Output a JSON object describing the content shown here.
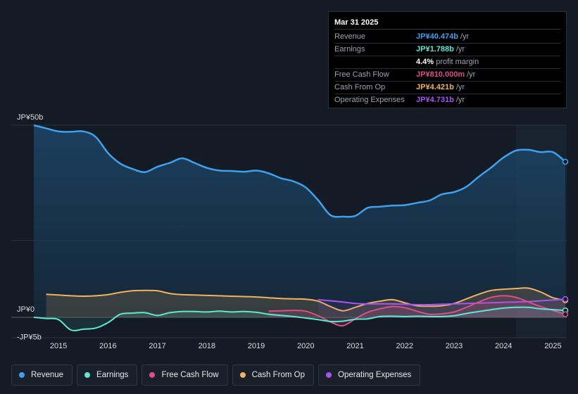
{
  "tooltip": {
    "date": "Mar 31 2025",
    "rows": [
      {
        "label": "Revenue",
        "value": "JP¥40.474b",
        "unit": "/yr",
        "color": "#3fa0ee"
      },
      {
        "label": "Earnings",
        "value": "JP¥1.788b",
        "unit": "/yr",
        "color": "#5ce8d4"
      },
      {
        "label": "",
        "value": "4.4%",
        "unit": "profit margin",
        "color": "#ffffff"
      },
      {
        "label": "Free Cash Flow",
        "value": "JP¥810.000m",
        "unit": "/yr",
        "color": "#d94f8a"
      },
      {
        "label": "Cash From Op",
        "value": "JP¥4.421b",
        "unit": "/yr",
        "color": "#f0b25c"
      },
      {
        "label": "Operating Expenses",
        "value": "JP¥4.731b",
        "unit": "/yr",
        "color": "#a855f7"
      }
    ]
  },
  "chart_data": {
    "type": "line",
    "title": "",
    "xlabel": "",
    "ylabel": "",
    "ylim": [
      -5,
      50
    ],
    "y_ticks": [
      {
        "value": 50,
        "label": "JP¥50b"
      },
      {
        "value": 0,
        "label": "JP¥0"
      },
      {
        "value": -5,
        "label": "-JP¥5b"
      }
    ],
    "x_ticks": [
      {
        "value": 2015,
        "label": "2015"
      },
      {
        "value": 2016,
        "label": "2016"
      },
      {
        "value": 2017,
        "label": "2017"
      },
      {
        "value": 2018,
        "label": "2018"
      },
      {
        "value": 2019,
        "label": "2019"
      },
      {
        "value": 2020,
        "label": "2020"
      },
      {
        "value": 2021,
        "label": "2021"
      },
      {
        "value": 2022,
        "label": "2022"
      },
      {
        "value": 2023,
        "label": "2023"
      },
      {
        "value": 2024,
        "label": "2024"
      },
      {
        "value": 2025,
        "label": "2025"
      }
    ],
    "xlim": [
      2014.5,
      2025.25
    ],
    "highlight_from": 2024.25,
    "series": [
      {
        "name": "Revenue",
        "color": "#3fa0ee",
        "x": [
          2014.5,
          2014.75,
          2015.0,
          2015.25,
          2015.5,
          2015.75,
          2016.0,
          2016.25,
          2016.5,
          2016.75,
          2017.0,
          2017.25,
          2017.5,
          2017.75,
          2018.0,
          2018.25,
          2018.5,
          2018.75,
          2019.0,
          2019.25,
          2019.5,
          2019.75,
          2020.0,
          2020.25,
          2020.5,
          2020.75,
          2021.0,
          2021.25,
          2021.5,
          2021.75,
          2022.0,
          2022.25,
          2022.5,
          2022.75,
          2023.0,
          2023.25,
          2023.5,
          2023.75,
          2024.0,
          2024.25,
          2024.5,
          2024.75,
          2025.0,
          2025.25
        ],
        "values": [
          50,
          49.2,
          48.4,
          48.3,
          48.4,
          47,
          42.8,
          40,
          38.6,
          37.8,
          39.2,
          40.2,
          41.4,
          40.2,
          38.9,
          38.2,
          38.1,
          37.9,
          38.2,
          37.5,
          36.2,
          35.4,
          33.8,
          30.5,
          26.6,
          26.2,
          26.4,
          28.5,
          28.8,
          29.1,
          29.2,
          29.8,
          30.4,
          32,
          32.6,
          34,
          36.6,
          39,
          41.6,
          43.4,
          43.6,
          43,
          43,
          40.5
        ]
      },
      {
        "name": "Earnings",
        "color": "#5ce8d4",
        "x": [
          2014.5,
          2014.75,
          2015.0,
          2015.25,
          2015.5,
          2015.75,
          2016.0,
          2016.25,
          2016.5,
          2016.75,
          2017.0,
          2017.25,
          2017.5,
          2017.75,
          2018.0,
          2018.25,
          2018.5,
          2018.75,
          2019.0,
          2019.25,
          2019.5,
          2019.75,
          2020.0,
          2020.25,
          2020.5,
          2020.75,
          2021.0,
          2021.25,
          2021.5,
          2021.75,
          2022.0,
          2022.25,
          2022.5,
          2022.75,
          2023.0,
          2023.25,
          2023.5,
          2023.75,
          2024.0,
          2024.25,
          2024.5,
          2024.75,
          2025.0,
          2025.25
        ],
        "values": [
          0,
          -0.3,
          -0.6,
          -3.3,
          -3.1,
          -2.8,
          -1.4,
          0.8,
          1.1,
          1.2,
          0.5,
          1.2,
          1.5,
          1.5,
          1.4,
          1.6,
          1.4,
          1.5,
          1.3,
          0.8,
          0.5,
          0.2,
          -0.2,
          -0.6,
          -1.1,
          -1,
          -0.5,
          -0.4,
          0.2,
          0.3,
          0.2,
          0.3,
          0.2,
          0.2,
          0.4,
          1,
          1.5,
          2,
          2.4,
          2.6,
          2.6,
          2.2,
          2.0,
          1.79
        ]
      },
      {
        "name": "Free Cash Flow",
        "color": "#d94f8a",
        "x": [
          2019.25,
          2019.5,
          2019.75,
          2020.0,
          2020.25,
          2020.5,
          2020.75,
          2021.0,
          2021.25,
          2021.5,
          2021.75,
          2022.0,
          2022.25,
          2022.5,
          2022.75,
          2023.0,
          2023.25,
          2023.5,
          2023.75,
          2024.0,
          2024.25,
          2024.5,
          2024.75,
          2025.0,
          2025.25
        ],
        "values": [
          1.6,
          1.7,
          1.8,
          1.6,
          0.4,
          -1.2,
          -2.2,
          -0.4,
          1.3,
          2.2,
          2.8,
          2.5,
          1.6,
          0.8,
          0.9,
          1.4,
          2.6,
          4.0,
          5.2,
          5.6,
          5.2,
          4.0,
          2.8,
          1.8,
          0.81
        ]
      },
      {
        "name": "Cash From Op",
        "color": "#f0b25c",
        "x": [
          2014.75,
          2015.0,
          2015.25,
          2015.5,
          2015.75,
          2016.0,
          2016.25,
          2016.5,
          2016.75,
          2017.0,
          2017.25,
          2017.5,
          2017.75,
          2018.0,
          2018.25,
          2018.5,
          2018.75,
          2019.0,
          2019.25,
          2019.5,
          2019.75,
          2020.0,
          2020.25,
          2020.5,
          2020.75,
          2021.0,
          2021.25,
          2021.5,
          2021.75,
          2022.0,
          2022.25,
          2022.5,
          2022.75,
          2023.0,
          2023.25,
          2023.5,
          2023.75,
          2024.0,
          2024.25,
          2024.5,
          2024.75,
          2025.0,
          2025.25
        ],
        "values": [
          6.0,
          5.8,
          5.6,
          5.5,
          5.6,
          5.9,
          6.5,
          6.9,
          7.0,
          6.9,
          6.2,
          5.9,
          5.8,
          5.7,
          5.6,
          5.5,
          5.4,
          5.3,
          5.1,
          4.9,
          4.8,
          4.7,
          4.2,
          2.8,
          1.7,
          2.6,
          3.6,
          4.2,
          4.6,
          3.8,
          3.0,
          2.9,
          3.0,
          3.6,
          4.8,
          6.0,
          7.0,
          7.3,
          7.5,
          7.6,
          6.6,
          5.1,
          4.42
        ]
      },
      {
        "name": "Operating Expenses",
        "color": "#a855f7",
        "x": [
          2020.25,
          2020.5,
          2020.75,
          2021.0,
          2021.25,
          2021.5,
          2021.75,
          2022.0,
          2022.25,
          2022.5,
          2022.75,
          2023.0,
          2023.25,
          2023.5,
          2023.75,
          2024.0,
          2024.25,
          2024.5,
          2024.75,
          2025.0,
          2025.25
        ],
        "values": [
          4.6,
          4.3,
          4.0,
          3.6,
          3.5,
          3.5,
          3.5,
          3.4,
          3.3,
          3.3,
          3.4,
          3.5,
          3.6,
          3.7,
          3.8,
          3.9,
          4.0,
          4.1,
          4.3,
          4.5,
          4.73
        ]
      }
    ]
  },
  "legend": [
    {
      "label": "Revenue",
      "color": "#3fa0ee"
    },
    {
      "label": "Earnings",
      "color": "#5ce8d4"
    },
    {
      "label": "Free Cash Flow",
      "color": "#d94f8a"
    },
    {
      "label": "Cash From Op",
      "color": "#f0b25c"
    },
    {
      "label": "Operating Expenses",
      "color": "#a855f7"
    }
  ]
}
